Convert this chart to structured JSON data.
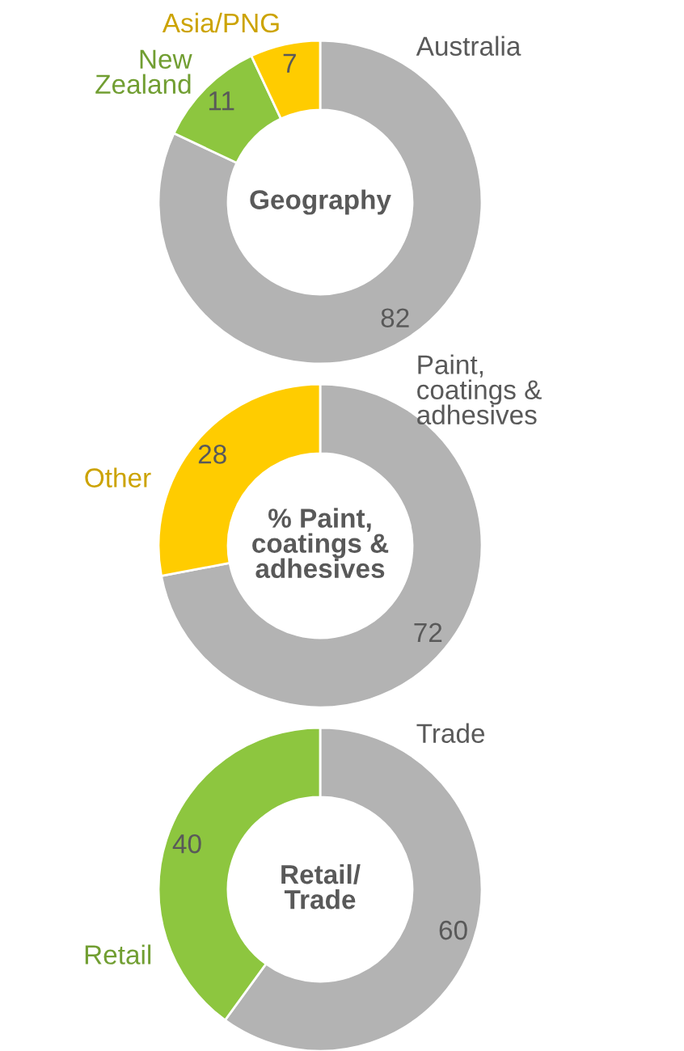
{
  "chart_data": [
    {
      "type": "donut",
      "title": "Geography",
      "categories": [
        "Australia",
        "New Zealand",
        "Asia/PNG"
      ],
      "values": [
        82,
        11,
        7
      ],
      "colors": [
        "#b3b3b3",
        "#8dc63f",
        "#ffcc00"
      ],
      "data_labels": true
    },
    {
      "type": "donut",
      "title": "% Paint, coatings & adhesives",
      "categories": [
        "Paint, coatings & adhesives",
        "Other"
      ],
      "values": [
        72,
        28
      ],
      "colors": [
        "#b3b3b3",
        "#ffcc00"
      ],
      "data_labels": true
    },
    {
      "type": "donut",
      "title": "Retail/ Trade",
      "categories": [
        "Trade",
        "Retail"
      ],
      "values": [
        60,
        40
      ],
      "colors": [
        "#b3b3b3",
        "#8dc63f"
      ],
      "data_labels": true
    }
  ]
}
